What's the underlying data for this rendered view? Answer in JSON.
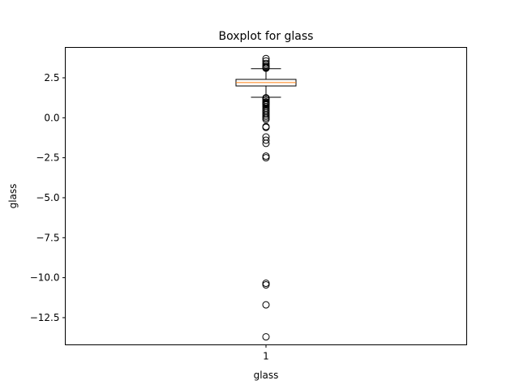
{
  "chart_data": {
    "type": "boxplot",
    "title": "Boxplot for glass",
    "xlabel": "glass",
    "ylabel": "glass",
    "categories": [
      "1"
    ],
    "ylim": [
      -14.2,
      4.4
    ],
    "yticks": [
      2.5,
      0.0,
      -2.5,
      -5.0,
      -7.5,
      -10.0,
      -12.5
    ],
    "ytick_labels": [
      "2.5",
      "0.0",
      "−2.5",
      "−5.0",
      "−7.5",
      "−10.0",
      "−12.5"
    ],
    "grid": false,
    "legend": "none",
    "box": {
      "q1": 1.99,
      "median": 2.2,
      "q3": 2.4,
      "whisker_low": 1.28,
      "whisker_high": 3.07,
      "fliers": [
        3.7,
        3.55,
        3.4,
        3.3,
        3.2,
        3.15,
        3.1,
        1.25,
        1.2,
        1.1,
        1.0,
        0.95,
        0.9,
        0.85,
        0.8,
        0.7,
        0.6,
        0.5,
        0.4,
        0.3,
        0.2,
        0.1,
        0.0,
        -0.1,
        -0.55,
        -0.6,
        -1.2,
        -1.4,
        -1.6,
        -2.4,
        -2.5,
        -10.35,
        -10.45,
        -11.7,
        -13.7
      ]
    },
    "colors": {
      "box": "#000000",
      "median": "#ff7f0e",
      "flier": "#000000"
    }
  }
}
